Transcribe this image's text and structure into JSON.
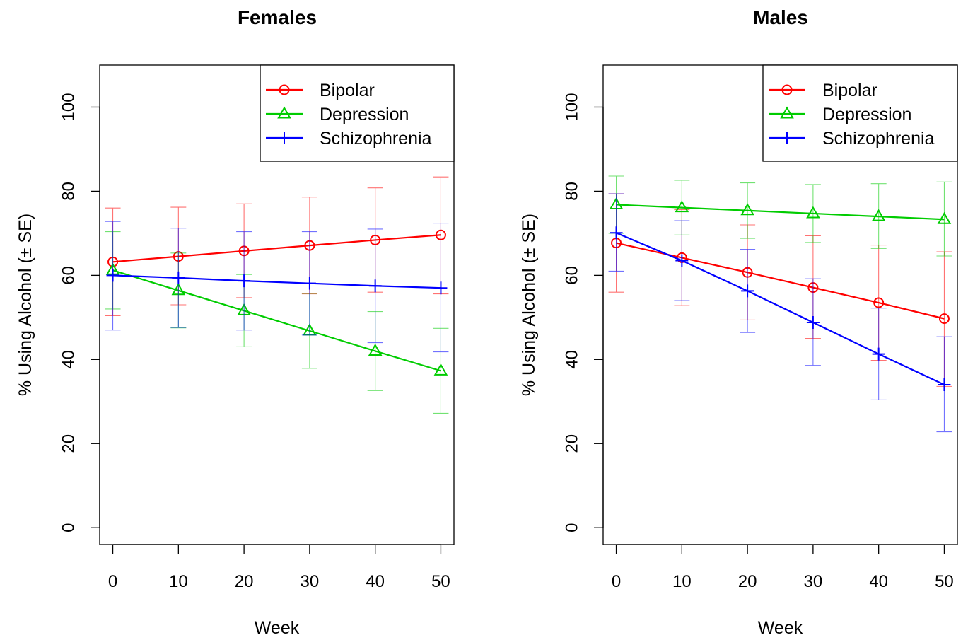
{
  "chart_data": [
    {
      "type": "line",
      "title": "Females",
      "xlabel": "Week",
      "ylabel": "% Using Alcohol (± SE)",
      "x": [
        0,
        10,
        20,
        30,
        40,
        50
      ],
      "xlim": [
        -2,
        52
      ],
      "ylim": [
        -4,
        110
      ],
      "xticks": [
        "0",
        "10",
        "20",
        "30",
        "40",
        "50"
      ],
      "yticks": [
        "0",
        "20",
        "40",
        "60",
        "80",
        "100"
      ],
      "grid": false,
      "legend": "top-right",
      "series": [
        {
          "name": "Bipolar",
          "color": "#ff0000",
          "marker": "circle",
          "values": [
            63.2,
            64.5,
            65.8,
            67.1,
            68.4,
            69.6
          ],
          "lower": [
            50.4,
            53.0,
            54.7,
            55.6,
            56.0,
            55.6
          ],
          "upper": [
            76.0,
            76.2,
            77.0,
            78.6,
            80.8,
            83.4
          ]
        },
        {
          "name": "Depression",
          "color": "#00cc00",
          "marker": "triangle",
          "values": [
            61.2,
            56.4,
            51.6,
            46.8,
            42.0,
            37.3
          ],
          "lower": [
            52.0,
            47.5,
            43.0,
            37.9,
            32.6,
            27.2
          ],
          "upper": [
            70.4,
            65.3,
            60.2,
            55.7,
            51.4,
            47.4
          ]
        },
        {
          "name": "Schizophrenia",
          "color": "#0000ff",
          "marker": "plus",
          "values": [
            60.0,
            59.4,
            58.7,
            58.1,
            57.5,
            57.0
          ],
          "lower": [
            47.0,
            47.6,
            47.0,
            45.8,
            44.0,
            41.8
          ],
          "upper": [
            72.8,
            71.2,
            70.4,
            70.4,
            71.0,
            72.4
          ]
        }
      ]
    },
    {
      "type": "line",
      "title": "Males",
      "xlabel": "Week",
      "ylabel": "% Using Alcohol (± SE)",
      "x": [
        0,
        10,
        20,
        30,
        40,
        50
      ],
      "xlim": [
        -2,
        52
      ],
      "ylim": [
        -4,
        110
      ],
      "xticks": [
        "0",
        "10",
        "20",
        "30",
        "40",
        "50"
      ],
      "yticks": [
        "0",
        "20",
        "40",
        "60",
        "80",
        "100"
      ],
      "grid": false,
      "legend": "top-right",
      "series": [
        {
          "name": "Bipolar",
          "color": "#ff0000",
          "marker": "circle",
          "values": [
            67.7,
            64.2,
            60.7,
            57.1,
            53.5,
            49.7
          ],
          "lower": [
            56.0,
            52.8,
            49.4,
            45.0,
            39.8,
            33.6
          ],
          "upper": [
            79.4,
            75.6,
            72.0,
            69.4,
            67.2,
            65.6
          ]
        },
        {
          "name": "Depression",
          "color": "#00cc00",
          "marker": "triangle",
          "values": [
            76.8,
            76.1,
            75.4,
            74.7,
            74.0,
            73.3
          ],
          "lower": [
            70.0,
            69.6,
            68.8,
            67.8,
            66.4,
            64.6
          ],
          "upper": [
            83.6,
            82.6,
            82.0,
            81.6,
            81.8,
            82.2
          ]
        },
        {
          "name": "Schizophrenia",
          "color": "#0000ff",
          "marker": "plus",
          "values": [
            70.1,
            63.5,
            56.3,
            48.8,
            41.3,
            34.0
          ],
          "lower": [
            61.0,
            54.0,
            46.4,
            38.6,
            30.4,
            22.8
          ],
          "upper": [
            79.4,
            73.0,
            66.2,
            59.2,
            52.2,
            45.4
          ]
        }
      ]
    }
  ]
}
